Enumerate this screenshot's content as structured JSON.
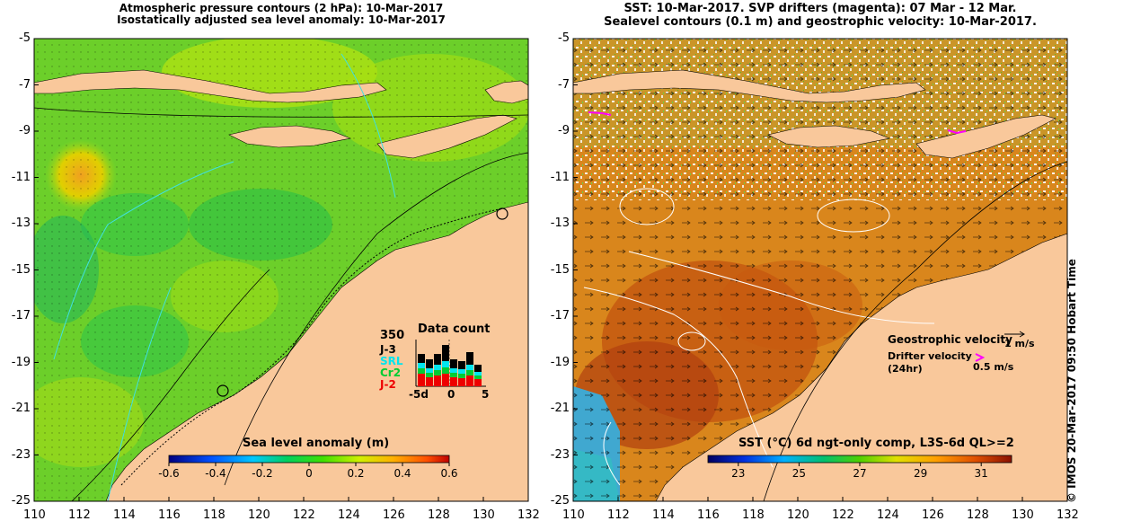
{
  "left_panel": {
    "title_line1": "Atmospheric pressure contours (2 hPa): 10-Mar-2017",
    "title_line2": "Isostatically adjusted sea level anomaly: 10-Mar-2017",
    "colorbar": {
      "title": "Sea level anomaly (m)",
      "ticks": [
        "-0.6",
        "-0.4",
        "-0.2",
        "0",
        "0.2",
        "0.4",
        "0.6"
      ],
      "range": [
        -0.6,
        0.6
      ]
    },
    "data_count": {
      "title": "Data count",
      "max_label": "350",
      "series": [
        {
          "name": "J-3",
          "color": "#000000"
        },
        {
          "name": "SRL",
          "color": "#00e5ee"
        },
        {
          "name": "Cr2",
          "color": "#00cc33"
        },
        {
          "name": "J-2",
          "color": "#ee0000"
        }
      ],
      "x_ticks": [
        "-5d",
        "0",
        "5"
      ]
    }
  },
  "right_panel": {
    "title_line1": "SST: 10-Mar-2017. SVP drifters (magenta): 07 Mar - 12 Mar.",
    "title_line2": "Sealevel contours (0.1 m) and geostrophic velocity: 10-Mar-2017.",
    "colorbar": {
      "title": "SST (°C) 6d ngt-only comp, L3S-6d QL>=2",
      "ticks": [
        "23",
        "25",
        "27",
        "29",
        "31"
      ],
      "range": [
        22,
        32
      ]
    },
    "legend": {
      "geostrophic_label": "Geostrophic velocity",
      "geostrophic_scale": "1 m/s",
      "drifter_label_line1": "Drifter velocity",
      "drifter_label_line2": "(24hr)",
      "drifter_scale": "0.5 m/s"
    }
  },
  "axes": {
    "lon_ticks": [
      "110",
      "112",
      "114",
      "116",
      "118",
      "120",
      "122",
      "124",
      "126",
      "128",
      "130",
      "132"
    ],
    "lat_ticks": [
      "-5",
      "-7",
      "-9",
      "-11",
      "-13",
      "-15",
      "-17",
      "-19",
      "-21",
      "-23",
      "-25"
    ],
    "lon_range": [
      110,
      132
    ],
    "lat_range": [
      -25,
      -5
    ]
  },
  "timestamp": "© IMOS 20-Mar-2017 09:50 Hobart Time",
  "colors": {
    "land": "#f9c89b",
    "sla_green": "#3dcc1f",
    "sla_yellow": "#c8e600",
    "sst_orange": "#e07a10",
    "sst_red": "#b8420a",
    "drifter": "#ff00ff"
  }
}
